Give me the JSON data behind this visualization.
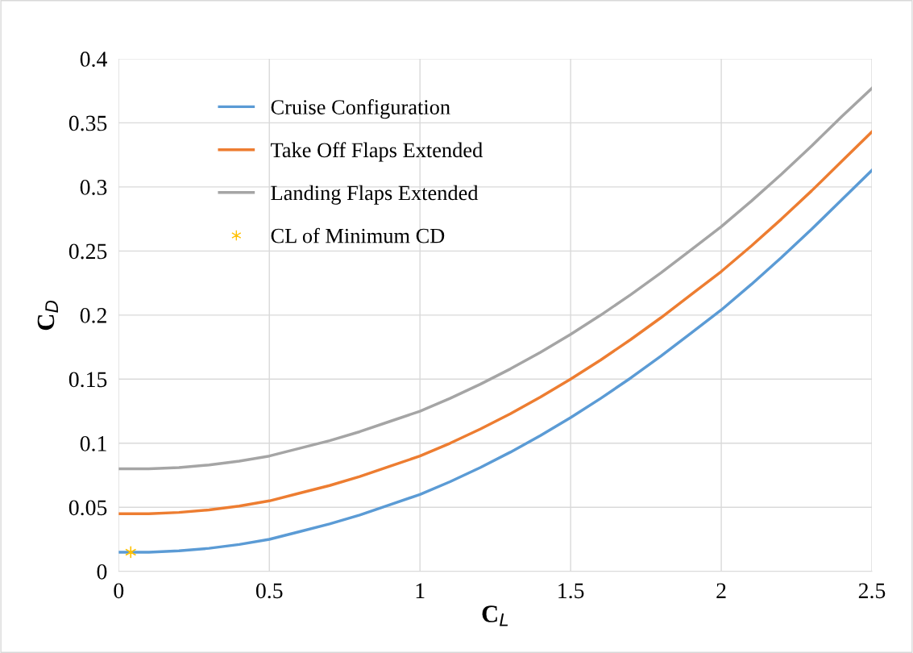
{
  "chart_data": {
    "type": "line",
    "xlabel": "C$_{L}$",
    "ylabel": "C$_{D}$",
    "xlim": [
      0,
      2.5
    ],
    "xticks": [
      0,
      0.5,
      1,
      1.5,
      2,
      2.5
    ],
    "ylim": [
      0,
      0.4
    ],
    "yticks": [
      0,
      0.05,
      0.1,
      0.15,
      0.2,
      0.25,
      0.3,
      0.35,
      0.4
    ],
    "grid": true,
    "legend": "top left",
    "marker": "none",
    "line_style": "solid",
    "x": [
      0,
      0.1,
      0.2,
      0.3,
      0.4,
      0.5,
      0.6,
      0.7,
      0.8,
      0.9,
      1.0,
      1.1,
      1.2,
      1.3,
      1.4,
      1.5,
      1.6,
      1.7,
      1.8,
      1.9,
      2.0,
      2.1,
      2.2,
      2.3,
      2.4,
      2.5
    ],
    "series": [
      {
        "name": "Cruise Configuration",
        "color": "#5b9bd5",
        "values": [
          0.015,
          0.015,
          0.016,
          0.018,
          0.021,
          0.025,
          0.031,
          0.037,
          0.044,
          0.052,
          0.06,
          0.07,
          0.081,
          0.093,
          0.106,
          0.12,
          0.135,
          0.151,
          0.168,
          0.186,
          0.204,
          0.224,
          0.245,
          0.267,
          0.29,
          0.313
        ]
      },
      {
        "name": "Take Off Flaps Extended",
        "color": "#ed7d31",
        "values": [
          0.045,
          0.045,
          0.046,
          0.048,
          0.051,
          0.055,
          0.061,
          0.067,
          0.074,
          0.082,
          0.09,
          0.1,
          0.111,
          0.123,
          0.136,
          0.15,
          0.165,
          0.181,
          0.198,
          0.216,
          0.234,
          0.254,
          0.275,
          0.297,
          0.32,
          0.343
        ]
      },
      {
        "name": "Landing Flaps Extended",
        "color": "#a5a5a5",
        "values": [
          0.08,
          0.08,
          0.081,
          0.083,
          0.086,
          0.09,
          0.096,
          0.102,
          0.109,
          0.117,
          0.125,
          0.135,
          0.146,
          0.158,
          0.171,
          0.185,
          0.2,
          0.216,
          0.233,
          0.251,
          0.269,
          0.289,
          0.31,
          0.332,
          0.355,
          0.377
        ]
      },
      {
        "name": "CL of Minimum CD",
        "type": "scatter",
        "marker": "cross",
        "color": "#ffc000",
        "x": [
          0.04
        ],
        "values": [
          0.015
        ]
      }
    ]
  }
}
